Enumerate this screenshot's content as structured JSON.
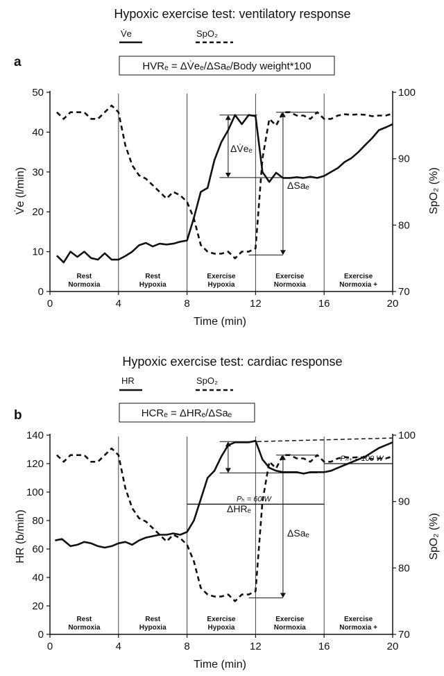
{
  "chart_data": [
    {
      "type": "line",
      "panel_label": "a",
      "title": "Hypoxic exercise test: ventilatory response",
      "formula": "HVRₑ = ΔV̇eₑ/ΔSaₑ/Body weight*100",
      "xlabel": "Time (min)",
      "ylabel": "V̇e (l/min)",
      "y2label": "SpO₂ (%)",
      "xlim": [
        0,
        20
      ],
      "ylim": [
        0,
        50
      ],
      "y2lim": [
        70,
        100
      ],
      "xticks": [
        "0",
        "4",
        "8",
        "12",
        "16",
        "20"
      ],
      "yticks": [
        "0",
        "10",
        "20",
        "30",
        "40",
        "50"
      ],
      "y2ticks": [
        "70",
        "80",
        "90",
        "100"
      ],
      "phases": [
        {
          "line1": "Rest",
          "line2": "Normoxia"
        },
        {
          "line1": "Rest",
          "line2": "Hypoxia"
        },
        {
          "line1": "Exercise",
          "line2": "Hypoxia"
        },
        {
          "line1": "Exercise",
          "line2": "Normoxia"
        },
        {
          "line1": "Exercise",
          "line2": "Normoxia +"
        }
      ],
      "phase_boundaries": [
        4,
        8,
        12,
        16
      ],
      "series": [
        {
          "name": "V̇e",
          "axis": "left",
          "style": "solid",
          "x": [
            0.4,
            0.8,
            1.2,
            1.6,
            2.0,
            2.4,
            2.8,
            3.2,
            3.6,
            4.0,
            4.4,
            4.8,
            5.2,
            5.6,
            6.0,
            6.4,
            6.8,
            7.2,
            7.6,
            8.0,
            8.4,
            8.8,
            9.2,
            9.6,
            10.0,
            10.4,
            10.8,
            11.2,
            11.6,
            12.0,
            12.4,
            12.8,
            13.2,
            13.6,
            14.0,
            14.4,
            14.8,
            15.2,
            15.6,
            16.0,
            16.4,
            16.8,
            17.2,
            17.6,
            18.0,
            18.4,
            18.8,
            19.2,
            19.6,
            20.0
          ],
          "values": [
            9.0,
            7.3,
            10.0,
            8.7,
            10.0,
            8.4,
            8.0,
            9.6,
            8.0,
            8.0,
            8.9,
            10.0,
            11.6,
            12.2,
            11.3,
            12.0,
            11.8,
            12.0,
            12.5,
            12.8,
            18.5,
            25.0,
            26.0,
            33.0,
            37.5,
            40.5,
            44.3,
            42.0,
            44.3,
            44.0,
            30.0,
            27.5,
            29.8,
            28.5,
            28.5,
            28.7,
            28.5,
            28.8,
            28.5,
            29.0,
            30.0,
            31.0,
            32.5,
            33.5,
            35.0,
            36.8,
            38.5,
            40.5,
            41.2,
            42.0
          ]
        },
        {
          "name": "SpO₂",
          "axis": "right",
          "style": "dashed",
          "x": [
            0.4,
            0.8,
            1.2,
            1.6,
            2.0,
            2.4,
            2.8,
            3.2,
            3.6,
            4.0,
            4.4,
            4.8,
            5.2,
            5.6,
            6.0,
            6.4,
            6.8,
            7.2,
            7.6,
            8.0,
            8.4,
            8.8,
            9.2,
            9.6,
            10.0,
            10.4,
            10.8,
            11.2,
            11.6,
            12.0,
            12.4,
            12.8,
            13.2,
            13.6,
            14.0,
            14.4,
            14.8,
            15.2,
            15.6,
            16.0,
            16.4,
            16.8,
            17.2,
            17.6,
            18.0,
            18.4,
            18.8,
            19.2,
            19.6,
            20.0
          ],
          "values": [
            97.0,
            96.0,
            97.0,
            97.0,
            97.0,
            96.0,
            96.0,
            97.0,
            98.0,
            97.0,
            92.0,
            89.0,
            87.5,
            87.0,
            86.0,
            85.0,
            84.0,
            85.0,
            84.5,
            83.5,
            81.0,
            77.0,
            76.0,
            75.7,
            75.7,
            76.0,
            75.0,
            76.0,
            76.0,
            76.5,
            90.0,
            96.0,
            95.0,
            97.0,
            97.0,
            96.5,
            96.5,
            96.0,
            97.0,
            96.0,
            96.0,
            96.5,
            96.7,
            96.6,
            96.7,
            96.6,
            96.4,
            96.5,
            96.5,
            96.8
          ]
        }
      ],
      "annotations": [
        "ΔV̇eₑ",
        "ΔSaₑ"
      ]
    },
    {
      "type": "line",
      "panel_label": "b",
      "title": "Hypoxic exercise test: cardiac response",
      "formula": "HCRₑ = ΔHRₑ/ΔSaₑ",
      "xlabel": "Time (min)",
      "ylabel": "HR (b/min)",
      "y2label": "SpO₂ (%)",
      "xlim": [
        0,
        20
      ],
      "ylim": [
        0,
        140
      ],
      "y2lim": [
        70,
        100
      ],
      "xticks": [
        "0",
        "4",
        "8",
        "12",
        "16",
        "20"
      ],
      "yticks": [
        "0",
        "20",
        "40",
        "60",
        "80",
        "100",
        "120",
        "140"
      ],
      "y2ticks": [
        "70",
        "80",
        "90",
        "100"
      ],
      "phases": [
        {
          "line1": "Rest",
          "line2": "Normoxia"
        },
        {
          "line1": "Rest",
          "line2": "Hypoxia"
        },
        {
          "line1": "Exercise",
          "line2": "Hypoxia"
        },
        {
          "line1": "Exercise",
          "line2": "Normoxia"
        },
        {
          "line1": "Exercise",
          "line2": "Normoxia +"
        }
      ],
      "phase_boundaries": [
        4,
        8,
        12,
        16
      ],
      "power_levels": [
        {
          "label": "Pₕ = 60 W",
          "value": 91.5,
          "x_start": 8,
          "x_end": 16
        },
        {
          "label": "Pₙ₊ = 100 W",
          "value": 120,
          "x_start": 16,
          "x_end": 20
        }
      ],
      "series": [
        {
          "name": "HR",
          "axis": "left",
          "style": "solid",
          "x": [
            0.3,
            0.7,
            1.2,
            1.6,
            2.0,
            2.4,
            2.8,
            3.2,
            3.6,
            4.0,
            4.4,
            4.8,
            5.2,
            5.6,
            6.0,
            6.4,
            6.8,
            7.2,
            7.6,
            8.0,
            8.4,
            8.8,
            9.2,
            9.6,
            10.0,
            10.4,
            10.8,
            11.2,
            11.6,
            12.0,
            12.4,
            12.8,
            13.2,
            13.6,
            14.0,
            14.4,
            14.8,
            15.2,
            15.6,
            16.0,
            16.4,
            16.8,
            17.2,
            17.6,
            18.0,
            18.4,
            18.8,
            19.2,
            19.6,
            20.0
          ],
          "values": [
            66,
            67,
            62,
            63,
            65,
            64,
            62,
            61,
            62,
            64,
            65,
            63,
            66,
            68,
            69,
            70,
            70,
            71,
            70,
            72,
            80,
            95,
            110,
            115,
            125,
            133,
            135,
            135,
            135,
            136,
            123,
            117,
            115,
            114,
            114,
            114,
            113,
            114,
            114,
            114,
            115,
            117,
            119,
            121,
            123,
            125,
            128,
            131,
            133,
            135
          ]
        },
        {
          "name": "SpO₂",
          "axis": "right",
          "style": "dashed",
          "x": [
            0.4,
            0.8,
            1.2,
            1.6,
            2.0,
            2.4,
            2.8,
            3.2,
            3.6,
            4.0,
            4.4,
            4.8,
            5.2,
            5.6,
            6.0,
            6.4,
            6.8,
            7.2,
            7.6,
            8.0,
            8.4,
            8.8,
            9.2,
            9.6,
            10.0,
            10.4,
            10.8,
            11.2,
            11.6,
            12.0,
            12.4,
            12.8,
            13.2,
            13.6,
            14.0,
            14.4,
            14.8,
            15.2,
            15.6,
            16.0,
            16.4,
            16.8,
            17.2,
            17.6,
            18.0,
            18.4,
            18.8,
            19.2,
            19.6,
            20.0
          ],
          "values": [
            97.0,
            96.0,
            97.0,
            97.0,
            97.0,
            96.0,
            96.0,
            97.0,
            98.0,
            97.0,
            92.0,
            89.0,
            87.5,
            87.0,
            86.0,
            85.0,
            84.0,
            85.0,
            84.5,
            83.5,
            81.0,
            77.0,
            76.0,
            75.7,
            75.7,
            76.0,
            75.0,
            76.0,
            76.0,
            76.5,
            90.0,
            96.0,
            95.0,
            97.0,
            97.0,
            96.5,
            96.5,
            96.0,
            97.0,
            96.0,
            96.0,
            96.5,
            96.7,
            96.6,
            96.7,
            96.6,
            96.4,
            96.5,
            96.5,
            96.8
          ]
        }
      ],
      "annotations": [
        "ΔHRₑ",
        "ΔSaₑ"
      ]
    }
  ]
}
